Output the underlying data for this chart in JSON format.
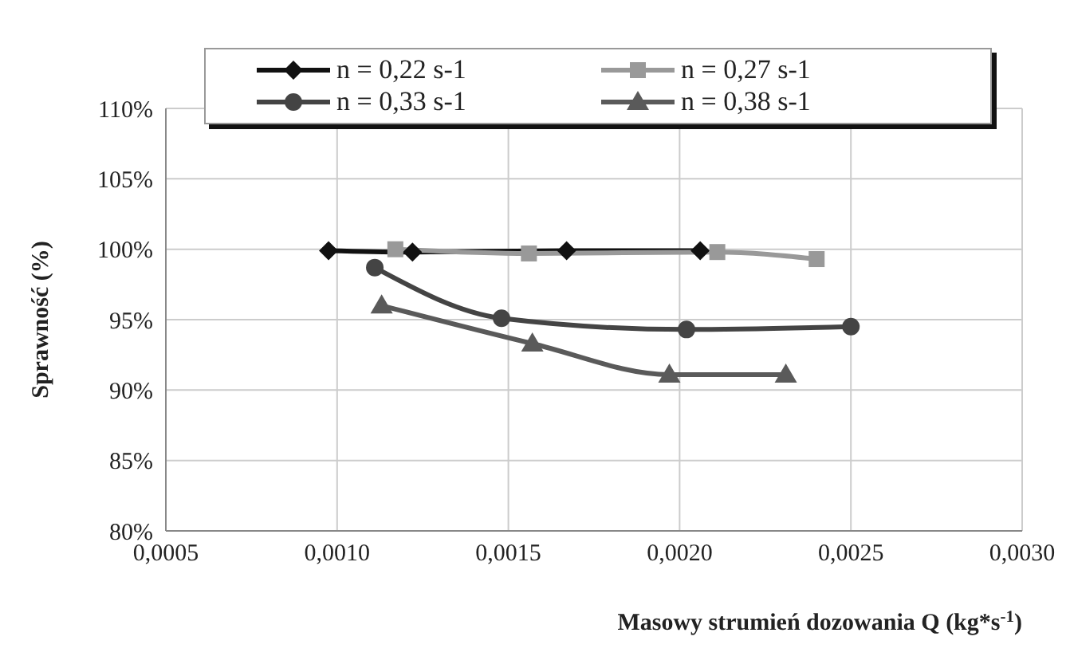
{
  "chart_data": {
    "type": "line",
    "xlabel": "Masowy strumień dozowania Q  (kg*s$^{-1}$)",
    "ylabel": "Sprawność (%)",
    "xlim": [
      0.0005,
      0.003
    ],
    "xticks": [
      {
        "value": 0.0005,
        "label": "0,0005"
      },
      {
        "value": 0.001,
        "label": "0,0010"
      },
      {
        "value": 0.0015,
        "label": "0,0015"
      },
      {
        "value": 0.002,
        "label": "0,0020"
      },
      {
        "value": 0.0025,
        "label": "0,0025"
      },
      {
        "value": 0.003,
        "label": "0,0030"
      }
    ],
    "ylim": [
      80,
      110
    ],
    "yticks": [
      {
        "value": 80,
        "label": "80%"
      },
      {
        "value": 85,
        "label": "85%"
      },
      {
        "value": 90,
        "label": "90%"
      },
      {
        "value": 95,
        "label": "95%"
      },
      {
        "value": 100,
        "label": "100%"
      },
      {
        "value": 105,
        "label": "105%"
      },
      {
        "value": 110,
        "label": "110%"
      }
    ],
    "grid": true,
    "legend": "top",
    "line_style": "solid",
    "series": [
      {
        "name": "n = 0,22 s-1",
        "color": "#111111",
        "marker": "diamond",
        "x": [
          0.000975,
          0.00122,
          0.00167,
          0.00206
        ],
        "values": [
          99.9,
          99.8,
          99.9,
          99.9
        ]
      },
      {
        "name": "n = 0,27 s-1",
        "color": "#999999",
        "marker": "square",
        "x": [
          0.00117,
          0.00156,
          0.00211,
          0.0024
        ],
        "values": [
          100,
          99.7,
          99.8,
          99.3
        ]
      },
      {
        "name": "n = 0,33 s-1",
        "color": "#444444",
        "marker": "circle",
        "x": [
          0.00111,
          0.00148,
          0.00202,
          0.0025
        ],
        "values": [
          98.7,
          95.1,
          94.3,
          94.5
        ]
      },
      {
        "name": "n = 0,38 s-1",
        "color": "#5a5a5a",
        "marker": "triangle",
        "x": [
          0.00113,
          0.00157,
          0.00197,
          0.00231
        ],
        "values": [
          96,
          93.3,
          91.1,
          91.1
        ]
      }
    ]
  }
}
